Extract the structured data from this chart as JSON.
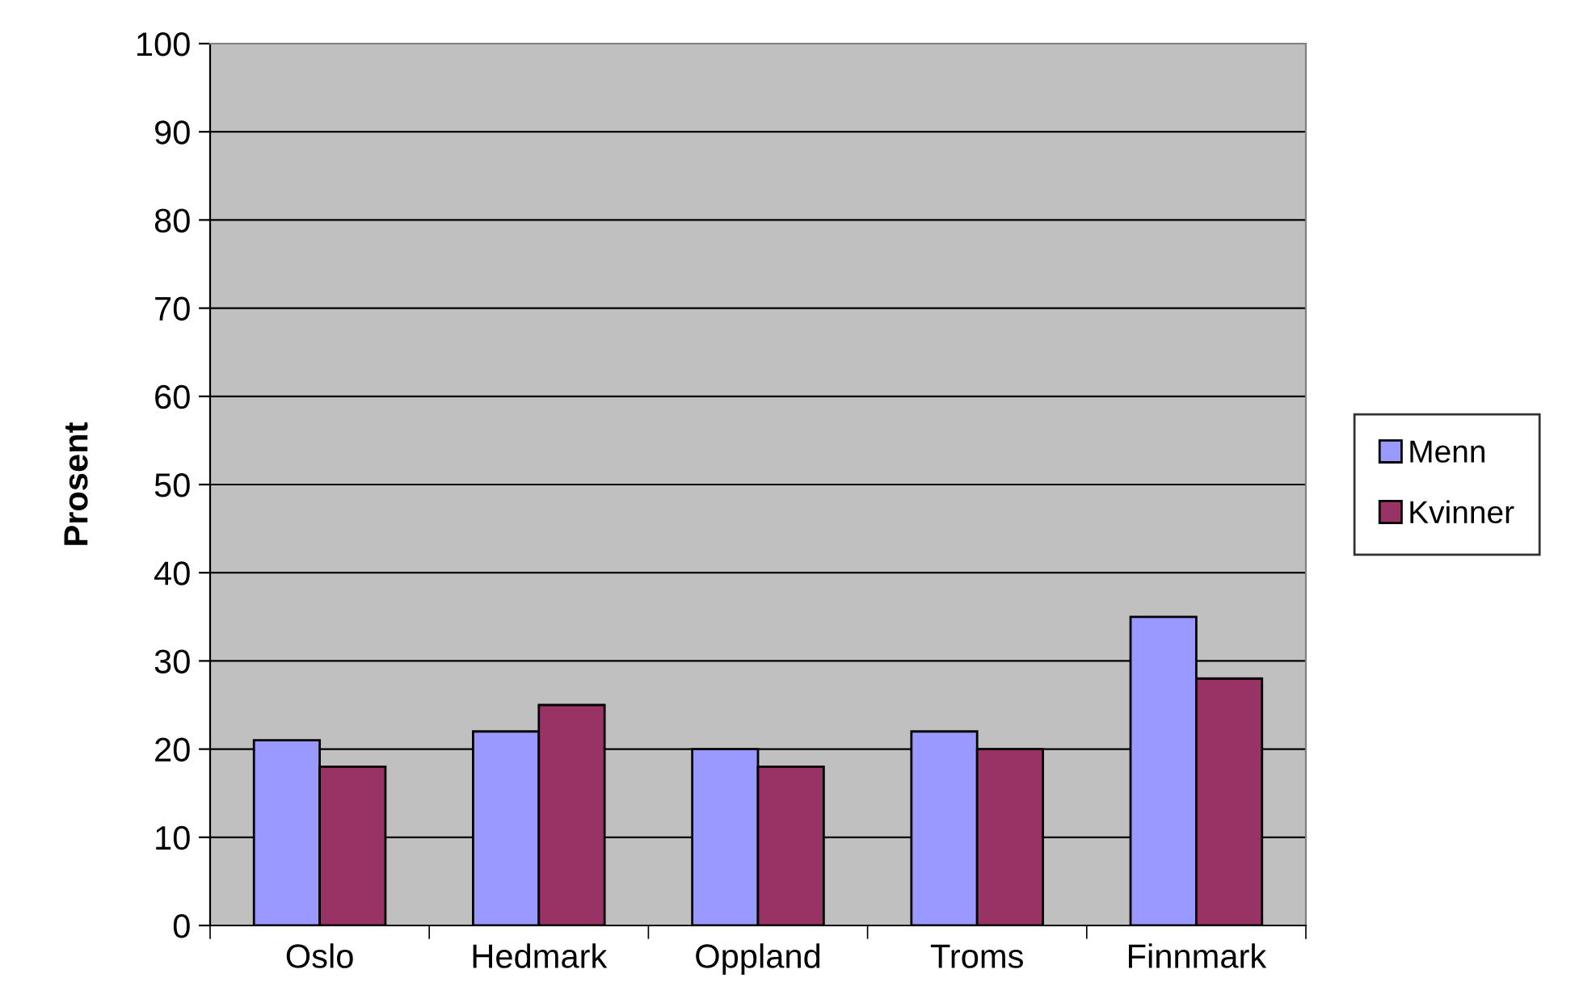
{
  "chart_data": {
    "type": "bar",
    "ylabel": "Prosent",
    "categories": [
      "Oslo",
      "Hedmark",
      "Oppland",
      "Troms",
      "Finnmark"
    ],
    "series": [
      {
        "name": "Menn",
        "color": "#9999ff",
        "values": [
          21,
          22,
          20,
          22,
          35
        ]
      },
      {
        "name": "Kvinner",
        "color": "#993366",
        "values": [
          18,
          25,
          18,
          20,
          28
        ]
      }
    ],
    "ylim": [
      0,
      100
    ],
    "yticks": [
      0,
      10,
      20,
      30,
      40,
      50,
      60,
      70,
      80,
      90,
      100
    ],
    "grid": "y",
    "legend": "right"
  }
}
